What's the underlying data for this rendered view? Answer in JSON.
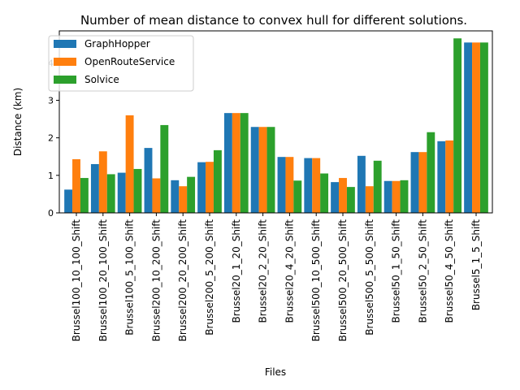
{
  "chart_data": {
    "type": "bar",
    "title": "Number of mean distance to convex hull for different solutions.",
    "xlabel": "Files",
    "ylabel": "Distance (km)",
    "ylim": [
      0,
      4.85
    ],
    "yticks": [
      0,
      1,
      2,
      3,
      4
    ],
    "legend_position": "upper-left",
    "grid": false,
    "categories": [
      "Brussel100_10_100_Shift",
      "Brussel100_20_100_Shift",
      "Brussel100_5_100_Shift",
      "Brussel200_10_200_Shift",
      "Brussel200_20_200_Shift",
      "Brussel200_5_200_Shift",
      "Brussel20_1_20_Shift",
      "Brussel20_2_20_Shift",
      "Brussel20_4_20_Shift",
      "Brussel500_10_500_Shift",
      "Brussel500_20_500_Shift",
      "Brussel500_5_500_Shift",
      "Brussel50_1_50_Shift",
      "Brussel50_2_50_Shift",
      "Brussel50_4_50_Shift",
      "Brussel5_1_5_Shift"
    ],
    "series": [
      {
        "name": "GraphHopper",
        "color": "#1f77b4",
        "values": [
          0.62,
          1.3,
          1.07,
          1.73,
          0.87,
          1.35,
          2.66,
          2.29,
          1.49,
          1.46,
          0.82,
          1.52,
          0.85,
          1.62,
          1.91,
          4.54
        ]
      },
      {
        "name": "OpenRouteService",
        "color": "#ff7f0e",
        "values": [
          1.43,
          1.64,
          2.6,
          0.92,
          0.71,
          1.36,
          2.66,
          2.29,
          1.49,
          1.46,
          0.93,
          0.71,
          0.85,
          1.62,
          1.93,
          4.54
        ]
      },
      {
        "name": "Solvice",
        "color": "#2ca02c",
        "values": [
          0.93,
          1.03,
          1.17,
          2.34,
          0.96,
          1.67,
          2.66,
          2.29,
          0.86,
          1.05,
          0.69,
          1.39,
          0.87,
          2.15,
          4.65,
          4.54
        ]
      }
    ]
  }
}
